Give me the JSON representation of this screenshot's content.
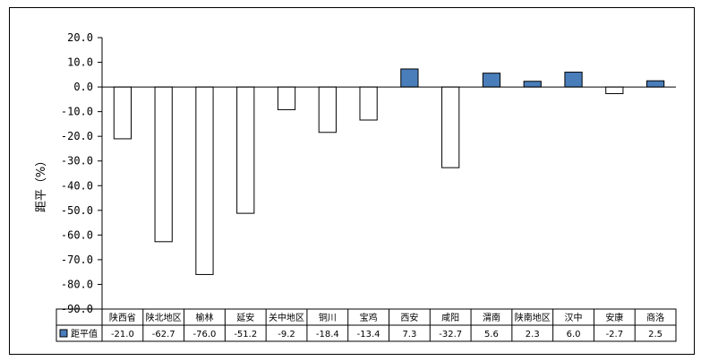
{
  "chart_data": {
    "type": "bar",
    "ylabel": "距平（%）",
    "ylim": [
      -90,
      20
    ],
    "yticks": [
      "20.0",
      "10.0",
      "0.0",
      "-10.0",
      "-20.0",
      "-30.0",
      "-40.0",
      "-50.0",
      "-60.0",
      "-70.0",
      "-80.0",
      "-90.0"
    ],
    "categories": [
      "陕西省",
      "陕北地区",
      "榆林",
      "延安",
      "关中地区",
      "铜川",
      "宝鸡",
      "西安",
      "咸阳",
      "渭南",
      "陕南地区",
      "汉中",
      "安康",
      "商洛"
    ],
    "series": [
      {
        "name": "距平值",
        "values": [
          -21.0,
          -62.7,
          -76.0,
          -51.2,
          -9.2,
          -18.4,
          -13.4,
          7.3,
          -32.7,
          5.6,
          2.3,
          6.0,
          -2.7,
          2.5
        ],
        "labels": [
          "-21.0",
          "-62.7",
          "-76.0",
          "-51.2",
          "-9.2",
          "-18.4",
          "-13.4",
          "7.3",
          "-32.7",
          "5.6",
          "2.3",
          "6.0",
          "-2.7",
          "2.5"
        ]
      }
    ],
    "colors": {
      "positive": "#4a7ebb",
      "negative": "#ffffff",
      "stroke": "#000000"
    },
    "legend": "data-table"
  }
}
